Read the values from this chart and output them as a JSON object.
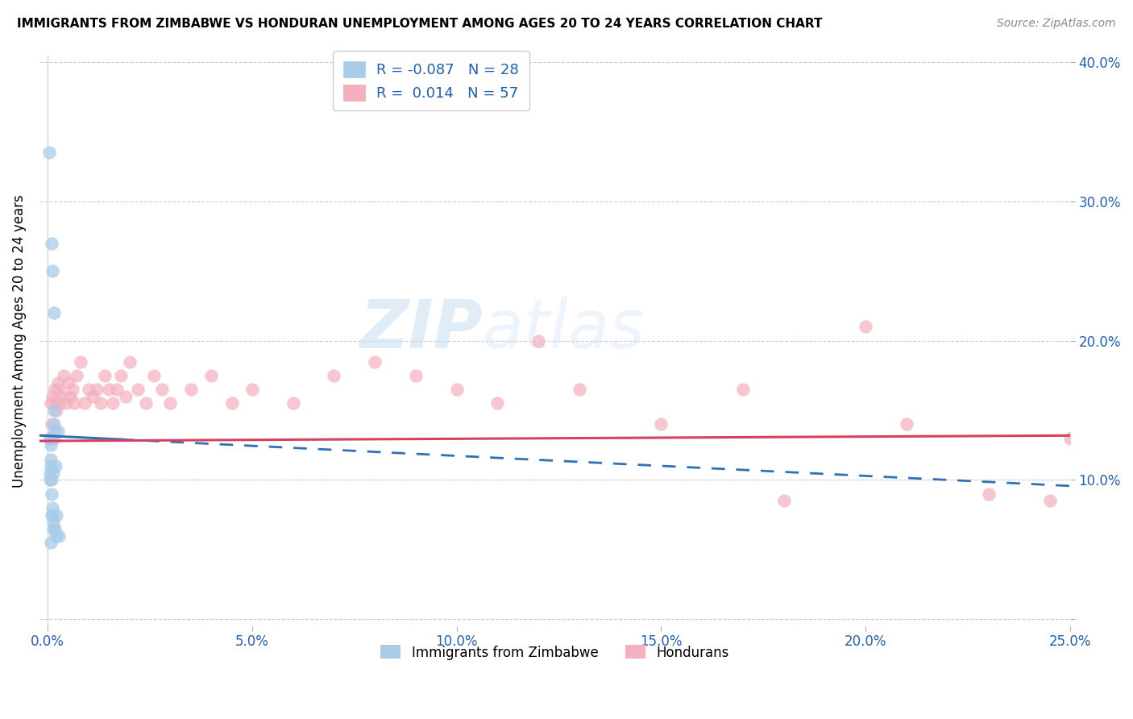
{
  "title": "IMMIGRANTS FROM ZIMBABWE VS HONDURAN UNEMPLOYMENT AMONG AGES 20 TO 24 YEARS CORRELATION CHART",
  "source": "Source: ZipAtlas.com",
  "ylabel": "Unemployment Among Ages 20 to 24 years",
  "legend_label1": "Immigrants from Zimbabwe",
  "legend_label2": "Hondurans",
  "R1": -0.087,
  "N1": 28,
  "R2": 0.014,
  "N2": 57,
  "color1": "#a8cce8",
  "color2": "#f4b0be",
  "trend_color1": "#3070b8",
  "trend_color2": "#d84060",
  "xlim_min": -0.002,
  "xlim_max": 0.25,
  "ylim_min": -0.005,
  "ylim_max": 0.405,
  "xtick_positions": [
    0.0,
    0.05,
    0.1,
    0.15,
    0.2,
    0.25
  ],
  "xtick_labels": [
    "0.0%",
    "5.0%",
    "10.0%",
    "15.0%",
    "20.0%",
    "25.0%"
  ],
  "ytick_positions": [
    0.0,
    0.1,
    0.2,
    0.3,
    0.4
  ],
  "ytick_labels": [
    "",
    "10.0%",
    "20.0%",
    "30.0%",
    "40.0%"
  ],
  "zimbabwe_x": [
    0.0003,
    0.0005,
    0.0005,
    0.0006,
    0.0007,
    0.0008,
    0.0008,
    0.0009,
    0.001,
    0.001,
    0.0011,
    0.0012,
    0.0013,
    0.0013,
    0.0014,
    0.0015,
    0.0016,
    0.0017,
    0.0018,
    0.0019,
    0.002,
    0.0022,
    0.0025,
    0.0028,
    0.001,
    0.0012,
    0.0015,
    0.0008
  ],
  "zimbabwe_y": [
    0.335,
    0.105,
    0.1,
    0.13,
    0.125,
    0.115,
    0.11,
    0.075,
    0.1,
    0.09,
    0.08,
    0.075,
    0.07,
    0.065,
    0.105,
    0.15,
    0.14,
    0.135,
    0.065,
    0.06,
    0.11,
    0.075,
    0.135,
    0.06,
    0.27,
    0.25,
    0.22,
    0.055
  ],
  "honduran_x": [
    0.0005,
    0.0008,
    0.001,
    0.0012,
    0.0015,
    0.0018,
    0.002,
    0.0022,
    0.0025,
    0.0028,
    0.003,
    0.0035,
    0.004,
    0.0045,
    0.005,
    0.0055,
    0.006,
    0.0065,
    0.007,
    0.008,
    0.009,
    0.01,
    0.011,
    0.012,
    0.013,
    0.014,
    0.015,
    0.016,
    0.017,
    0.018,
    0.019,
    0.02,
    0.022,
    0.024,
    0.026,
    0.028,
    0.03,
    0.035,
    0.04,
    0.045,
    0.05,
    0.06,
    0.07,
    0.08,
    0.09,
    0.1,
    0.11,
    0.12,
    0.13,
    0.15,
    0.17,
    0.18,
    0.2,
    0.21,
    0.23,
    0.245,
    0.25
  ],
  "honduran_y": [
    0.13,
    0.155,
    0.14,
    0.16,
    0.13,
    0.165,
    0.155,
    0.15,
    0.17,
    0.165,
    0.155,
    0.16,
    0.175,
    0.155,
    0.17,
    0.16,
    0.165,
    0.155,
    0.175,
    0.185,
    0.155,
    0.165,
    0.16,
    0.165,
    0.155,
    0.175,
    0.165,
    0.155,
    0.165,
    0.175,
    0.16,
    0.185,
    0.165,
    0.155,
    0.175,
    0.165,
    0.155,
    0.165,
    0.175,
    0.155,
    0.165,
    0.155,
    0.175,
    0.185,
    0.175,
    0.165,
    0.155,
    0.2,
    0.165,
    0.14,
    0.165,
    0.085,
    0.21,
    0.14,
    0.09,
    0.085,
    0.13
  ],
  "trend1_x0": -0.002,
  "trend1_x1": 0.255,
  "trend1_y0": 0.132,
  "trend1_y1": 0.095,
  "trend2_x0": -0.002,
  "trend2_x1": 0.255,
  "trend2_y0": 0.128,
  "trend2_y1": 0.132,
  "watermark": "ZIPatlas"
}
